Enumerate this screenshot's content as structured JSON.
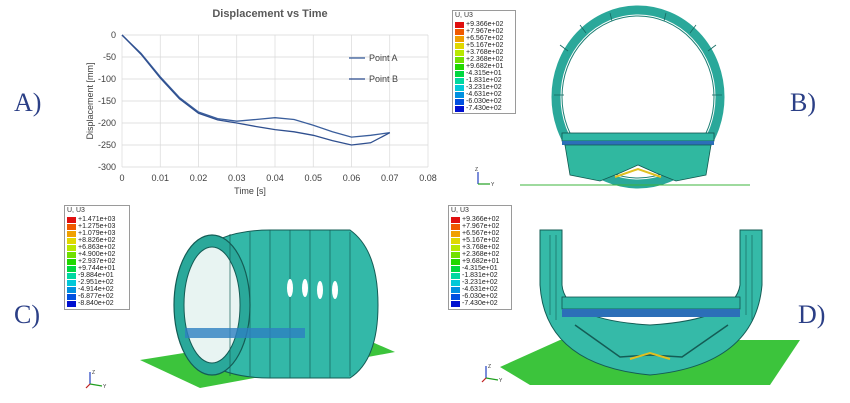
{
  "panels": {
    "a": "A)",
    "b": "B)",
    "c": "C)",
    "d": "D)"
  },
  "chart_data": {
    "type": "line",
    "title": "Displacement vs Time",
    "xlabel": "Time [s]",
    "ylabel": "Displacement [mm]",
    "xlim": [
      0,
      0.08
    ],
    "ylim": [
      -300,
      0
    ],
    "xticks": [
      "0",
      "0.01",
      "0.02",
      "0.03",
      "0.04",
      "0.05",
      "0.06",
      "0.07",
      "0.08"
    ],
    "yticks": [
      "0",
      "-50",
      "-100",
      "-150",
      "-200",
      "-250",
      "-300"
    ],
    "grid": true,
    "legend_position": "right",
    "series": [
      {
        "name": "Point A",
        "color": "#3a5e9c",
        "x": [
          0,
          0.005,
          0.01,
          0.015,
          0.02,
          0.025,
          0.03,
          0.035,
          0.04,
          0.045,
          0.05,
          0.055,
          0.06,
          0.065,
          0.07
        ],
        "y": [
          0,
          -42,
          -95,
          -142,
          -175,
          -190,
          -196,
          -192,
          -188,
          -192,
          -205,
          -220,
          -232,
          -228,
          -222
        ]
      },
      {
        "name": "Point B",
        "color": "#2f4f8f",
        "x": [
          0,
          0.005,
          0.01,
          0.015,
          0.02,
          0.025,
          0.03,
          0.035,
          0.04,
          0.045,
          0.05,
          0.055,
          0.06,
          0.065,
          0.07
        ],
        "y": [
          0,
          -44,
          -98,
          -145,
          -178,
          -193,
          -200,
          -208,
          -215,
          -220,
          -228,
          -240,
          -250,
          -245,
          -222
        ]
      }
    ]
  },
  "legends": {
    "b": {
      "title": "U, U3",
      "labels": [
        "+9.366e+02",
        "+7.967e+02",
        "+6.567e+02",
        "+5.167e+02",
        "+3.768e+02",
        "+2.368e+02",
        "+9.682e+01",
        "-4.315e+01",
        "-1.831e+02",
        "-3.231e+02",
        "-4.631e+02",
        "-6.030e+02",
        "-7.430e+02"
      ]
    },
    "c": {
      "title": "U, U3",
      "labels": [
        "+1.471e+03",
        "+1.275e+03",
        "+1.079e+03",
        "+8.826e+02",
        "+6.863e+02",
        "+4.900e+02",
        "+2.937e+02",
        "+9.744e+01",
        "-9.884e+01",
        "-2.951e+02",
        "-4.914e+02",
        "-6.877e+02",
        "-8.840e+02"
      ]
    },
    "d": {
      "title": "U, U3",
      "labels": [
        "+9.366e+02",
        "+7.967e+02",
        "+6.567e+02",
        "+5.167e+02",
        "+3.768e+02",
        "+2.368e+02",
        "+9.682e+01",
        "-4.315e+01",
        "-1.831e+02",
        "-3.231e+02",
        "-4.631e+02",
        "-6.030e+02",
        "-7.430e+02"
      ]
    },
    "colors": [
      "#e01010",
      "#f05a00",
      "#f0a000",
      "#e0d800",
      "#b8e800",
      "#70e000",
      "#20d800",
      "#00d840",
      "#00d8a0",
      "#00c8d8",
      "#0090e0",
      "#0050e0",
      "#0010d0"
    ]
  },
  "triads": {
    "z": "Z",
    "y": "Y"
  }
}
